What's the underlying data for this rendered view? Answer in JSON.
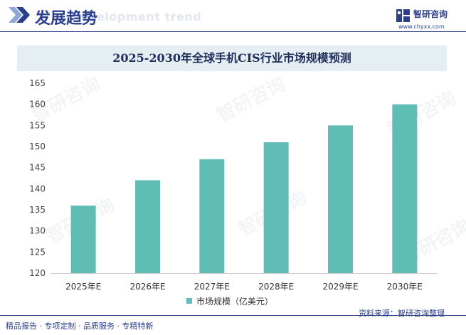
{
  "header": {
    "section_title": "发展趋势",
    "section_title_en": "Development trend",
    "brand_name": "智研咨询",
    "brand_url": "www.chyxx.com"
  },
  "watermark_text": "智研咨询",
  "colors": {
    "bar": "#5fbdb6",
    "brand": "#2a3f8e",
    "title_band": "#e4eef3"
  },
  "chart_data": {
    "type": "bar",
    "title": "2025-2030年全球手机CIS行业市场规模预测",
    "categories": [
      "2025年E",
      "2026年E",
      "2027年E",
      "2028年E",
      "2029年E",
      "2030年E"
    ],
    "series": [
      {
        "name": "市场规模（亿美元）",
        "values": [
          136,
          142,
          147,
          151,
          155,
          160
        ]
      }
    ],
    "ylim": [
      120,
      165
    ],
    "yticks": [
      120,
      125,
      130,
      135,
      140,
      145,
      150,
      155,
      160,
      165
    ],
    "grid": false,
    "legend_position": "bottom"
  },
  "footer": {
    "left_text": "精品报告 · 专项定制 · 品质服务 · 专精特新",
    "source_text": "资料来源：智研咨询整理"
  }
}
